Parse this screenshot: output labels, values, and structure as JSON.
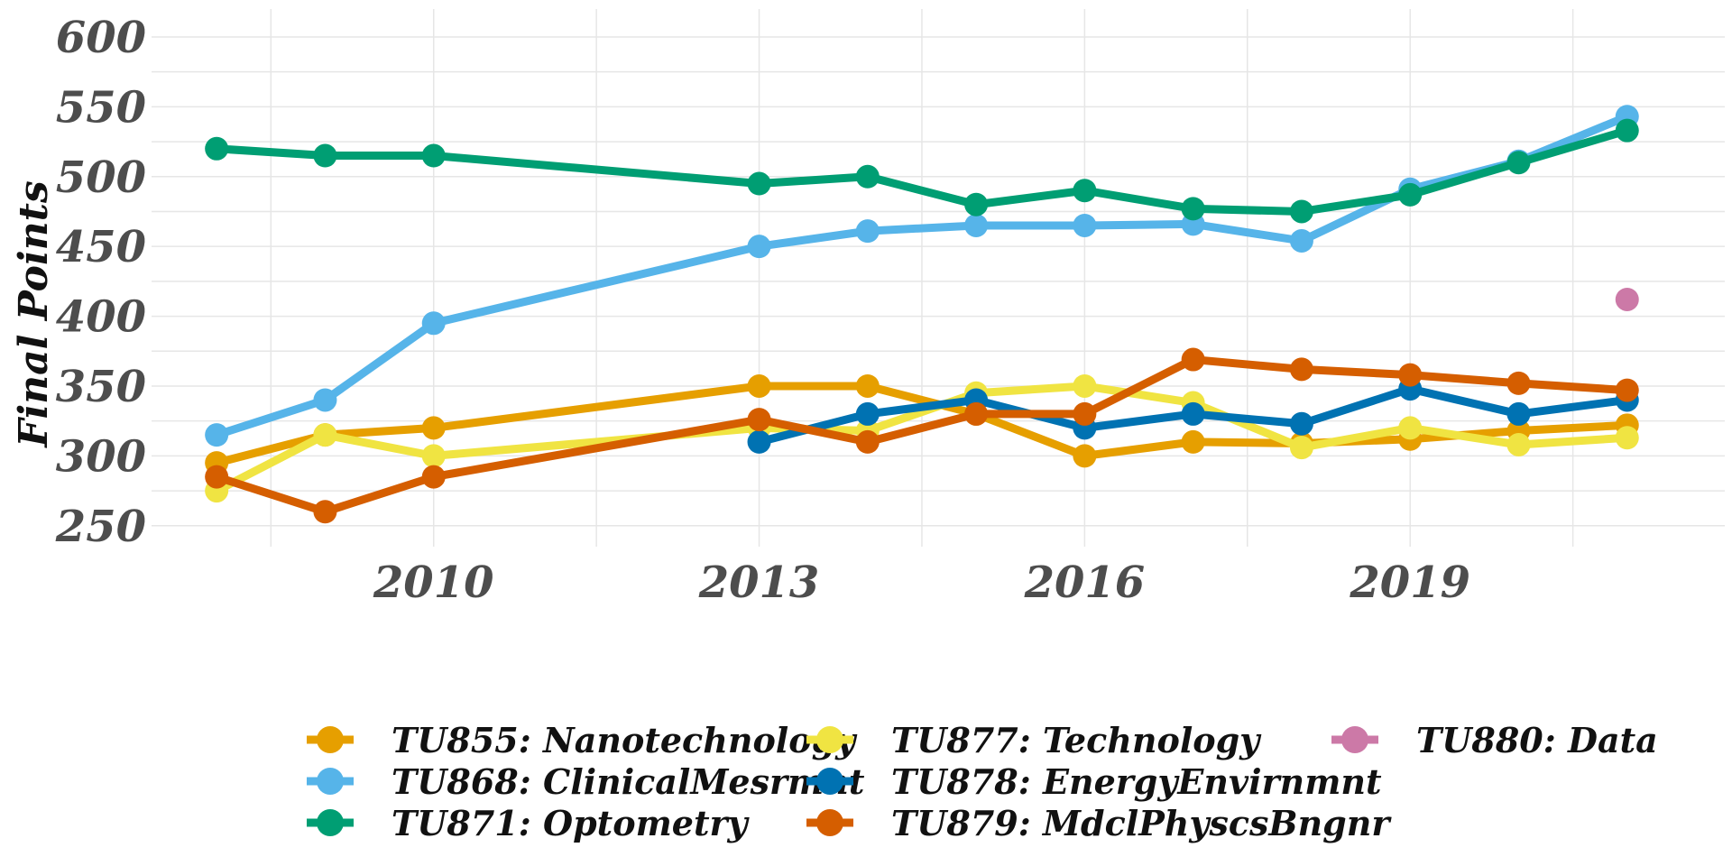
{
  "chart_data": {
    "type": "line",
    "ylabel": "Final Points",
    "xlabel": "",
    "title": "",
    "ylim": [
      235,
      620
    ],
    "xlim": [
      2007.4,
      2021.9
    ],
    "yticks": [
      250,
      300,
      350,
      400,
      450,
      500,
      550,
      600
    ],
    "xticks": [
      2010,
      2013,
      2016,
      2019
    ],
    "grid": true,
    "legend_position": "bottom",
    "series": [
      {
        "name": "TU855: Nanotechnology",
        "color": "#E69F00",
        "x": [
          2008,
          2009,
          2010,
          2013,
          2014,
          2015,
          2016,
          2017,
          2018,
          2019,
          2020,
          2021
        ],
        "y": [
          295,
          315,
          320,
          350,
          350,
          330,
          300,
          310,
          309,
          312,
          318,
          322
        ]
      },
      {
        "name": "TU868: ClinicalMesrmnt",
        "color": "#56B4E9",
        "x": [
          2008,
          2009,
          2010,
          2013,
          2014,
          2015,
          2016,
          2017,
          2018,
          2019,
          2020,
          2021
        ],
        "y": [
          315,
          340,
          395,
          450,
          461,
          465,
          465,
          466,
          454,
          491,
          511,
          543
        ]
      },
      {
        "name": "TU871: Optometry",
        "color": "#009E73",
        "x": [
          2008,
          2009,
          2010,
          2013,
          2014,
          2015,
          2016,
          2017,
          2018,
          2019,
          2020,
          2021
        ],
        "y": [
          520,
          515,
          515,
          495,
          500,
          480,
          490,
          477,
          475,
          487,
          510,
          533
        ]
      },
      {
        "name": "TU877: Technology",
        "color": "#F0E442",
        "x": [
          2008,
          2009,
          2010,
          2013,
          2014,
          2015,
          2016,
          2017,
          2018,
          2019,
          2020,
          2021
        ],
        "y": [
          275,
          315,
          300,
          320,
          318,
          345,
          350,
          338,
          306,
          320,
          308,
          313
        ]
      },
      {
        "name": "TU878: EnergyEnvirnmnt",
        "color": "#0072B2",
        "x": [
          2013,
          2014,
          2015,
          2016,
          2017,
          2018,
          2019,
          2020,
          2021
        ],
        "y": [
          310,
          330,
          340,
          320,
          330,
          323,
          348,
          330,
          340
        ]
      },
      {
        "name": "TU879: MdclPhyscsBngnr",
        "color": "#D55E00",
        "x": [
          2008,
          2009,
          2010,
          2013,
          2014,
          2015,
          2016,
          2017,
          2018,
          2019,
          2020,
          2021
        ],
        "y": [
          285,
          260,
          285,
          326,
          310,
          330,
          330,
          369,
          362,
          358,
          352,
          347
        ]
      },
      {
        "name": "TU880: Data",
        "color": "#CC79A7",
        "x": [
          2021
        ],
        "y": [
          412
        ]
      }
    ]
  }
}
